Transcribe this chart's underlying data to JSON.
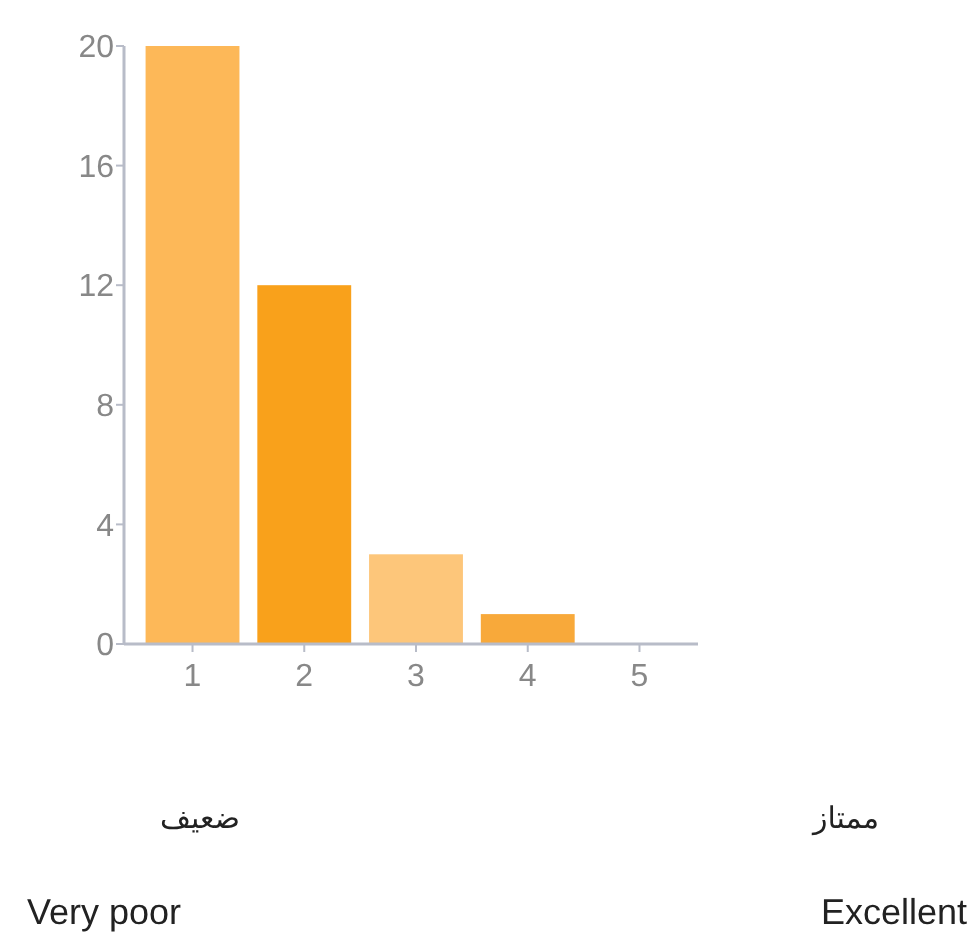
{
  "chart_data": {
    "type": "bar",
    "categories": [
      "1",
      "2",
      "3",
      "4",
      "5"
    ],
    "values": [
      20,
      12,
      3,
      1,
      0
    ],
    "colors": [
      "#fdb858",
      "#f9a11b",
      "#fdc67a",
      "#f8a93a",
      "#f8a93a"
    ],
    "ylim": [
      0,
      20
    ],
    "yticks": [
      0,
      4,
      8,
      12,
      16,
      20
    ],
    "grid": false,
    "annotations": [
      "ضعيف",
      "ممتاز",
      "Very poor",
      "Excellent"
    ]
  }
}
